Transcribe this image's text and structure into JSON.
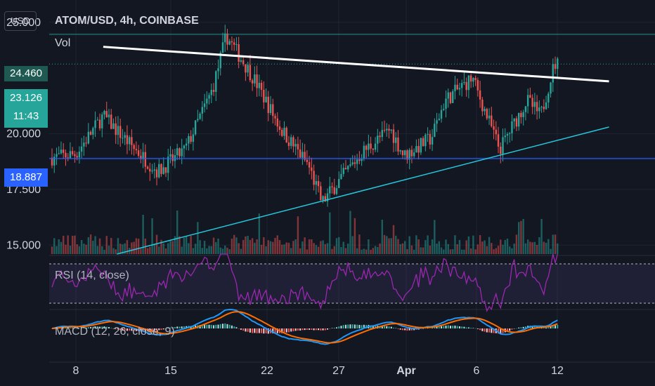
{
  "header": {
    "currency": "USD",
    "symbol_line": "ATOM/USD, 4h, COINBASE",
    "volume_label": "Vol"
  },
  "price_axis": {
    "ticks": [
      "25.000",
      "20.000",
      "17.500",
      "15.000"
    ],
    "range": [
      14.6,
      26.0
    ]
  },
  "price_tags": {
    "resistance": {
      "value": "24.460",
      "color": "#1e5a52"
    },
    "last": {
      "value": "23.126",
      "countdown": "11:43",
      "color": "#26a69a"
    },
    "support": {
      "value": "18.887",
      "color": "#2962ff"
    }
  },
  "time_axis": {
    "labels": [
      "8",
      "15",
      "22",
      "27",
      "Apr",
      "6",
      "12"
    ]
  },
  "indicators": {
    "rsi_label": "RSI (14, close)",
    "macd_label": "MACD (12, 26, close, 9)"
  },
  "colors": {
    "background": "#131722",
    "up": "#26a69a",
    "down": "#ef5350",
    "rsi": "#9c27b0",
    "macd": "#2196f3",
    "signal": "#ff6d00",
    "trendline_upper": "#ffffff",
    "trendline_lower": "#26c6da"
  },
  "chart_data": {
    "type": "candlestick",
    "symbol": "ATOM/USD",
    "interval": "4h",
    "exchange": "COINBASE",
    "levels": {
      "resistance": 24.46,
      "support": 18.887,
      "last": 23.126
    },
    "trendlines": [
      {
        "name": "upper",
        "from": {
          "date": "Mar 10",
          "price": 23.9
        },
        "to": {
          "date": "Apr 16",
          "price": 22.35
        }
      },
      {
        "name": "lower",
        "from": {
          "date": "Mar 11",
          "price": 14.6
        },
        "to": {
          "date": "Apr 16",
          "price": 20.3
        }
      }
    ],
    "price_path": [
      {
        "date": "Mar 6",
        "price": 18.9
      },
      {
        "date": "Mar 8",
        "price": 19.1
      },
      {
        "date": "Mar 10",
        "price": 20.8
      },
      {
        "date": "Mar 12",
        "price": 19.5
      },
      {
        "date": "Mar 14",
        "price": 18.3
      },
      {
        "date": "Mar 16",
        "price": 19.3
      },
      {
        "date": "Mar 18",
        "price": 22.0
      },
      {
        "date": "Mar 19",
        "price": 24.4
      },
      {
        "date": "Mar 21",
        "price": 22.5
      },
      {
        "date": "Mar 23",
        "price": 20.2
      },
      {
        "date": "Mar 25",
        "price": 18.6
      },
      {
        "date": "Mar 26",
        "price": 16.9
      },
      {
        "date": "Mar 27",
        "price": 17.7
      },
      {
        "date": "Mar 29",
        "price": 19.2
      },
      {
        "date": "Mar 31",
        "price": 20.2
      },
      {
        "date": "Apr 1",
        "price": 19.0
      },
      {
        "date": "Apr 3",
        "price": 19.8
      },
      {
        "date": "Apr 4",
        "price": 21.5
      },
      {
        "date": "Apr 6",
        "price": 22.5
      },
      {
        "date": "Apr 8",
        "price": 19.3
      },
      {
        "date": "Apr 10",
        "price": 21.5
      },
      {
        "date": "Apr 11",
        "price": 20.8
      },
      {
        "date": "Apr 12",
        "price": 23.126
      }
    ],
    "rsi_bounds": [
      30,
      70
    ]
  }
}
